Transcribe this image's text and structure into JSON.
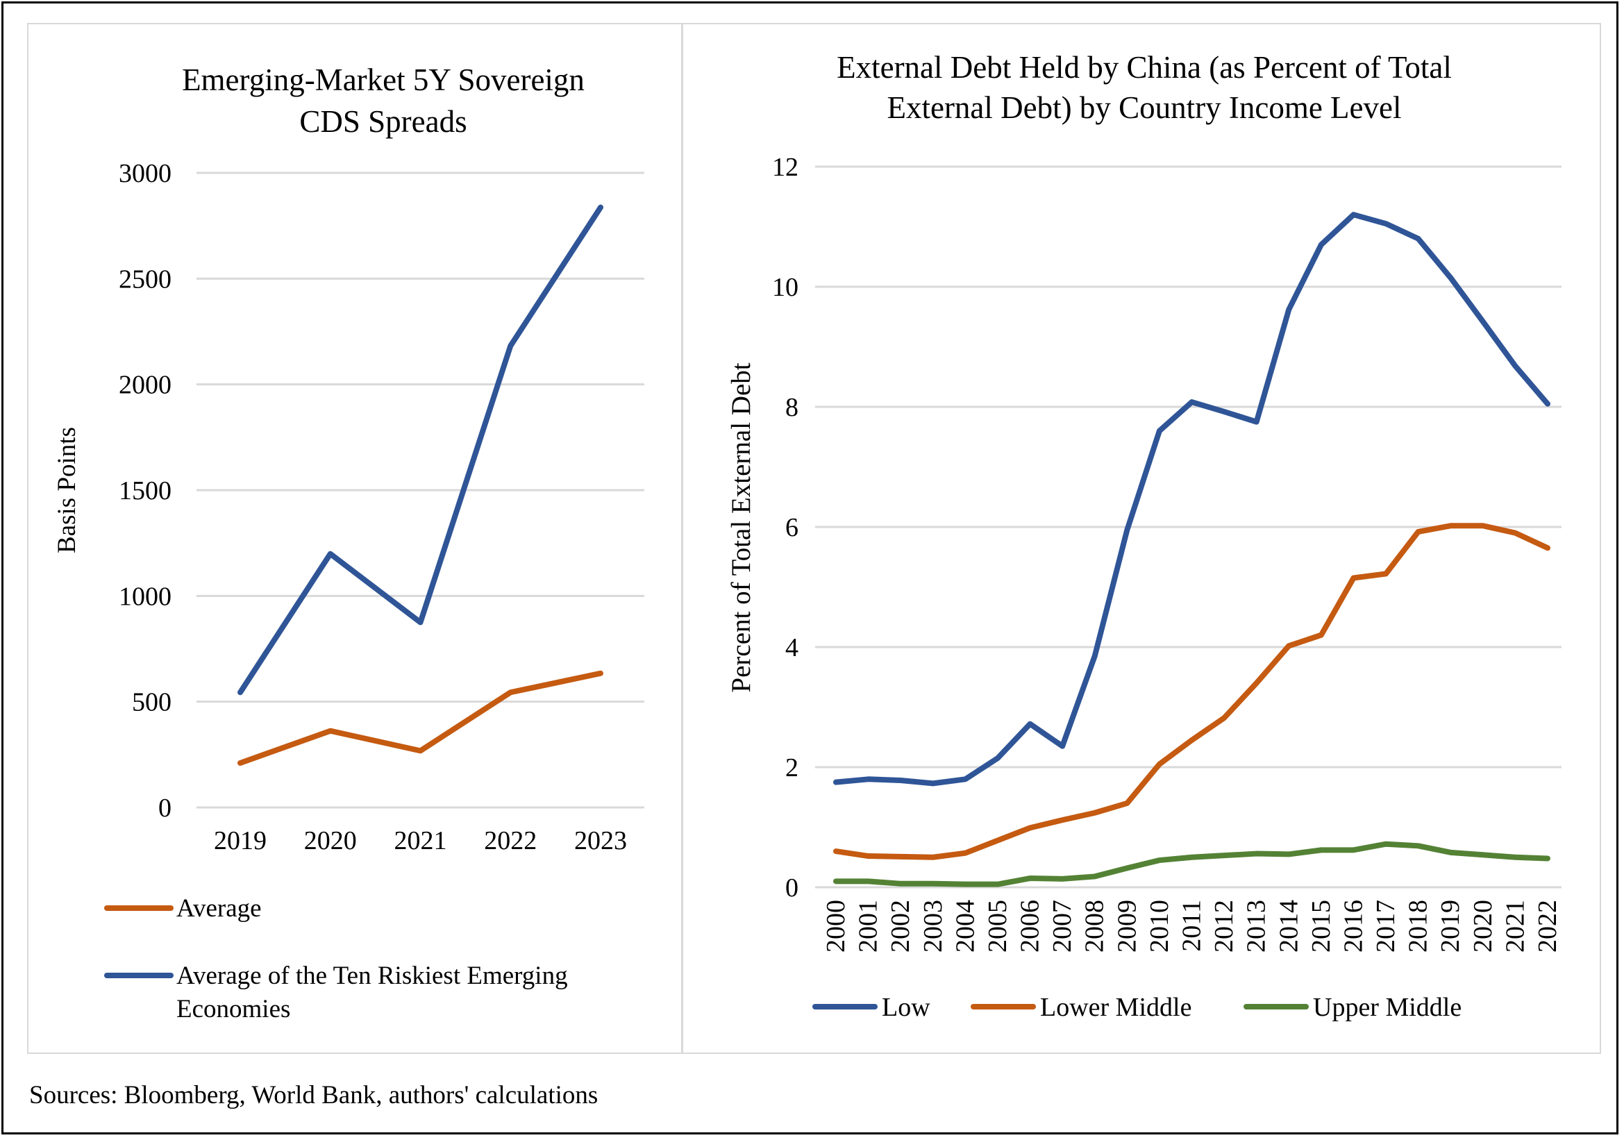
{
  "chart_data": [
    {
      "type": "line",
      "title": "Emerging-Market 5Y Sovereign CDS Spreads",
      "title_lines": [
        "Emerging-Market 5Y Sovereign",
        "CDS Spreads"
      ],
      "xlabel": "",
      "ylabel": "Basis Points",
      "ylim": [
        0,
        3000
      ],
      "yticks": [
        0,
        500,
        1000,
        1500,
        2000,
        2500,
        3000
      ],
      "categories": [
        "2019",
        "2020",
        "2021",
        "2022",
        "2023"
      ],
      "grid": true,
      "legend_position": "bottom",
      "series": [
        {
          "name": "Average",
          "color": "#c55a11",
          "values": [
            210,
            362,
            268,
            544,
            634
          ]
        },
        {
          "name": "Average of the Ten Riskiest Emerging Economies",
          "name_lines": [
            "Average of the Ten Riskiest Emerging",
            "Economies"
          ],
          "color": "#2f5597",
          "values": [
            544,
            1199,
            875,
            2182,
            2837
          ]
        }
      ]
    },
    {
      "type": "line",
      "title": "External Debt Held by China (as Percent of Total External Debt) by Country Income Level",
      "title_lines": [
        "External Debt Held by China (as Percent of Total",
        "External Debt) by Country Income Level"
      ],
      "xlabel": "",
      "ylabel": "Percent of Total External Debt",
      "ylim": [
        0,
        12
      ],
      "yticks": [
        0,
        2,
        4,
        6,
        8,
        10,
        12
      ],
      "categories": [
        "2000",
        "2001",
        "2002",
        "2003",
        "2004",
        "2005",
        "2006",
        "2007",
        "2008",
        "2009",
        "2010",
        "2011",
        "2012",
        "2013",
        "2014",
        "2015",
        "2016",
        "2017",
        "2018",
        "2019",
        "2020",
        "2021",
        "2022"
      ],
      "grid": true,
      "legend_position": "bottom",
      "series": [
        {
          "name": "Low",
          "color": "#2f5597",
          "values": [
            1.75,
            1.8,
            1.78,
            1.73,
            1.8,
            2.15,
            2.72,
            2.35,
            3.85,
            5.95,
            7.6,
            8.08,
            7.92,
            7.75,
            9.62,
            10.7,
            11.2,
            11.05,
            10.8,
            10.15,
            9.42,
            8.68,
            8.05
          ]
        },
        {
          "name": "Lower Middle",
          "color": "#c55a11",
          "values": [
            0.6,
            0.52,
            0.51,
            0.5,
            0.57,
            0.78,
            0.99,
            1.12,
            1.24,
            1.4,
            2.05,
            2.45,
            2.82,
            3.4,
            4.02,
            4.2,
            5.15,
            5.22,
            5.92,
            6.02,
            6.02,
            5.9,
            5.65
          ]
        },
        {
          "name": "Upper Middle",
          "color": "#548235",
          "values": [
            0.1,
            0.1,
            0.06,
            0.06,
            0.05,
            0.05,
            0.15,
            0.14,
            0.18,
            0.32,
            0.45,
            0.5,
            0.53,
            0.56,
            0.55,
            0.62,
            0.62,
            0.72,
            0.69,
            0.58,
            0.54,
            0.5,
            0.48
          ]
        }
      ]
    }
  ],
  "footer": {
    "sources": "Sources: Bloomberg, World Bank, authors' calculations"
  }
}
